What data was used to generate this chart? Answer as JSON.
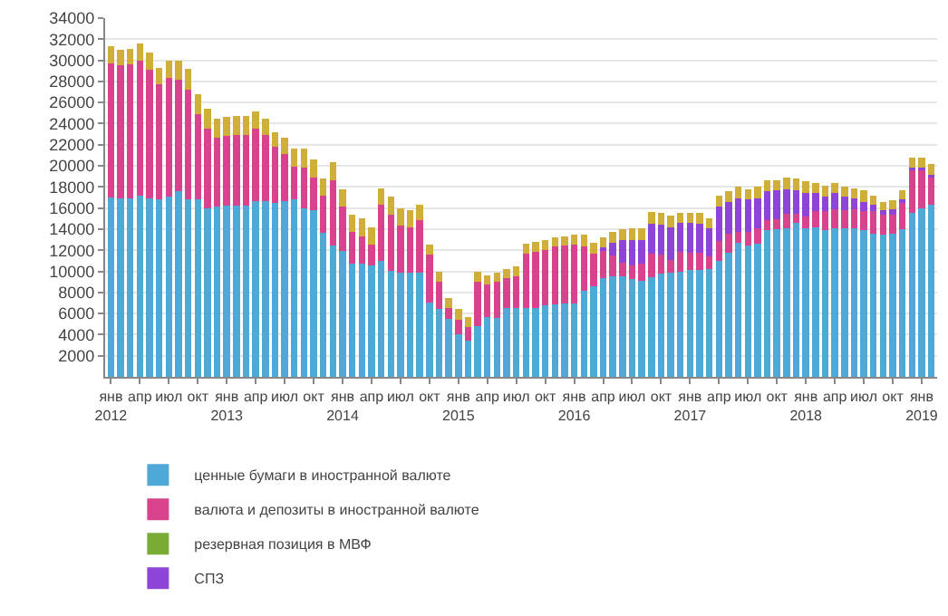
{
  "chart_data": {
    "type": "bar",
    "stacked": true,
    "categories": [
      "янв\n2012",
      null,
      null,
      "апр",
      null,
      null,
      "июл",
      null,
      null,
      "окт",
      null,
      null,
      "янв\n2013",
      null,
      null,
      "апр",
      null,
      null,
      "июл",
      null,
      null,
      "окт",
      null,
      null,
      "янв\n2014",
      null,
      null,
      "апр",
      null,
      null,
      "июл",
      null,
      null,
      "окт",
      null,
      null,
      "янв\n2015",
      null,
      null,
      "апр",
      null,
      null,
      "июл",
      null,
      null,
      "окт",
      null,
      null,
      "янв\n2016",
      null,
      null,
      "апр",
      null,
      null,
      "июл",
      null,
      null,
      "окт",
      null,
      null,
      "янв\n2017",
      null,
      null,
      "апр",
      null,
      null,
      "июл",
      null,
      null,
      "окт",
      null,
      null,
      "янв\n2018",
      null,
      null,
      "апр",
      null,
      null,
      "июл",
      null,
      null,
      "окт",
      null,
      null,
      "янв\n2019",
      null
    ],
    "series": [
      {
        "name": "ценные бумаги в иностранной валюте",
        "color": "#4fa9d6",
        "values": [
          17000,
          16900,
          16900,
          17200,
          16900,
          16800,
          17100,
          17600,
          16800,
          16800,
          16000,
          16100,
          16200,
          16200,
          16200,
          16700,
          16700,
          16500,
          16700,
          16800,
          16000,
          15800,
          13650,
          12450,
          11950,
          10700,
          10700,
          10550,
          11000,
          10050,
          9900,
          9900,
          9900,
          7000,
          6450,
          5500,
          4000,
          3400,
          4800,
          5700,
          5550,
          6550,
          6500,
          6550,
          6550,
          6800,
          6850,
          6950,
          6950,
          8150,
          8550,
          9400,
          9500,
          9550,
          9300,
          9100,
          9450,
          9750,
          9850,
          10000,
          10100,
          10100,
          10200,
          10950,
          11800,
          12700,
          12450,
          12650,
          13900,
          14000,
          14050,
          14600,
          14050,
          14150,
          13900,
          14100,
          14050,
          14050,
          13900,
          13550,
          13500,
          13550,
          14000,
          15550,
          16000,
          16300
        ]
      },
      {
        "name": "валюта и депозиты в иностранной валюте",
        "color": "#d9438e",
        "values": [
          12700,
          12600,
          12700,
          12800,
          12200,
          10900,
          11200,
          10600,
          10400,
          8100,
          7500,
          6600,
          6600,
          6700,
          6700,
          6800,
          6200,
          5300,
          4400,
          3100,
          3850,
          3100,
          3550,
          6200,
          4150,
          3000,
          2650,
          1950,
          5300,
          5350,
          4450,
          4300,
          4950,
          4600,
          2600,
          1050,
          1400,
          1350,
          4250,
          3100,
          3450,
          2800,
          3000,
          5100,
          5300,
          5250,
          5500,
          5500,
          5550,
          4250,
          3100,
          2550,
          2000,
          1250,
          1300,
          1600,
          2200,
          1800,
          1250,
          1850,
          1700,
          1700,
          1250,
          1950,
          1750,
          1050,
          1300,
          1400,
          950,
          900,
          1400,
          850,
          1150,
          1550,
          1800,
          1750,
          1750,
          1800,
          1800,
          2150,
          1850,
          1800,
          2650,
          4150,
          3600,
          2700
        ]
      },
      {
        "name": "резервная позиция в МВФ",
        "color": "#7aab35",
        "values": [
          null,
          null,
          null,
          null,
          null,
          null,
          null,
          null,
          null,
          null,
          null,
          null,
          null,
          null,
          null,
          null,
          null,
          null,
          null,
          null,
          null,
          null,
          null,
          null,
          null,
          null,
          null,
          null,
          null,
          null,
          null,
          null,
          null,
          null,
          null,
          null,
          null,
          null,
          null,
          null,
          null,
          null,
          null,
          null,
          null,
          null,
          null,
          null,
          null,
          null,
          null,
          null,
          null,
          null,
          null,
          null,
          null,
          null,
          null,
          null,
          null,
          null,
          null,
          null,
          null,
          null,
          null,
          null,
          null,
          null,
          null,
          null,
          null,
          null,
          null,
          null,
          null,
          null,
          null,
          null,
          null,
          null,
          null,
          null,
          null,
          null
        ]
      },
      {
        "name": "СПЗ",
        "color": "#8e44d6",
        "values": [
          null,
          null,
          null,
          null,
          null,
          null,
          null,
          null,
          null,
          null,
          null,
          null,
          null,
          null,
          null,
          null,
          null,
          null,
          null,
          null,
          null,
          null,
          null,
          null,
          null,
          null,
          null,
          null,
          null,
          null,
          null,
          null,
          null,
          null,
          null,
          null,
          null,
          null,
          null,
          null,
          null,
          null,
          null,
          null,
          null,
          null,
          null,
          null,
          null,
          null,
          null,
          350,
          1200,
          2150,
          2400,
          2300,
          2850,
          2850,
          3100,
          2750,
          2800,
          2700,
          2650,
          3200,
          3000,
          3200,
          3100,
          2900,
          2750,
          2800,
          2350,
          2250,
          2250,
          1700,
          1400,
          1550,
          1250,
          1050,
          900,
          600,
          450,
          550,
          200,
          100,
          200,
          150
        ]
      },
      {
        "color": "#cfae3a",
        "values": [
          1600,
          1500,
          1500,
          1600,
          1600,
          1600,
          1700,
          1800,
          2000,
          1900,
          1900,
          1800,
          1800,
          1800,
          1800,
          1700,
          1600,
          1400,
          1600,
          1700,
          1750,
          1700,
          1600,
          1700,
          1700,
          1700,
          1700,
          1700,
          1600,
          1650,
          1650,
          1600,
          1450,
          900,
          900,
          950,
          1050,
          900,
          900,
          850,
          900,
          900,
          950,
          950,
          950,
          900,
          900,
          900,
          950,
          1050,
          1050,
          950,
          1000,
          1050,
          1100,
          1100,
          1100,
          1100,
          1050,
          900,
          900,
          1000,
          950,
          1050,
          1050,
          1050,
          950,
          1050,
          1050,
          950,
          1050,
          1100,
          1100,
          950,
          1000,
          950,
          950,
          1000,
          1050,
          850,
          800,
          850,
          800,
          1000,
          1000,
          1000
        ]
      }
    ],
    "ylim": [
      0,
      34000
    ],
    "yticks": [
      2000,
      4000,
      6000,
      8000,
      10000,
      12000,
      14000,
      16000,
      18000,
      20000,
      22000,
      24000,
      26000,
      28000,
      30000,
      32000,
      34000
    ],
    "grid": "y",
    "legend": "bottom"
  }
}
